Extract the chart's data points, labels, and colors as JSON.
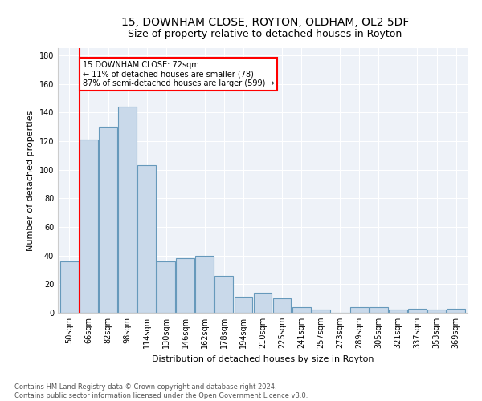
{
  "title1": "15, DOWNHAM CLOSE, ROYTON, OLDHAM, OL2 5DF",
  "title2": "Size of property relative to detached houses in Royton",
  "xlabel": "Distribution of detached houses by size in Royton",
  "ylabel": "Number of detached properties",
  "categories": [
    "50sqm",
    "66sqm",
    "82sqm",
    "98sqm",
    "114sqm",
    "130sqm",
    "146sqm",
    "162sqm",
    "178sqm",
    "194sqm",
    "210sqm",
    "225sqm",
    "241sqm",
    "257sqm",
    "273sqm",
    "289sqm",
    "305sqm",
    "321sqm",
    "337sqm",
    "353sqm",
    "369sqm"
  ],
  "values": [
    36,
    121,
    130,
    144,
    103,
    36,
    38,
    40,
    26,
    11,
    14,
    10,
    4,
    2,
    0,
    4,
    4,
    2,
    3,
    2,
    3
  ],
  "bar_color": "#c9d9ea",
  "bar_edge_color": "#6699bb",
  "vline_color": "red",
  "annotation_line1": "15 DOWNHAM CLOSE: 72sqm",
  "annotation_line2": "← 11% of detached houses are smaller (78)",
  "annotation_line3": "87% of semi-detached houses are larger (599) →",
  "annotation_box_color": "white",
  "annotation_box_edge": "red",
  "ylim": [
    0,
    185
  ],
  "yticks": [
    0,
    20,
    40,
    60,
    80,
    100,
    120,
    140,
    160,
    180
  ],
  "bg_color": "#eef2f8",
  "footer1": "Contains HM Land Registry data © Crown copyright and database right 2024.",
  "footer2": "Contains public sector information licensed under the Open Government Licence v3.0.",
  "title1_fontsize": 10,
  "title2_fontsize": 9,
  "xlabel_fontsize": 8,
  "ylabel_fontsize": 8,
  "tick_fontsize": 7,
  "annotation_fontsize": 7,
  "footer_fontsize": 6
}
